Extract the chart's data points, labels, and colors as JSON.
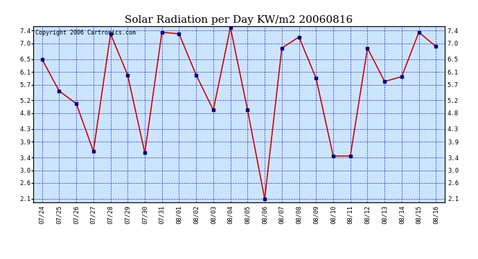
{
  "title": "Solar Radiation per Day KW/m2 20060816",
  "copyright_text": "Copyright 2006 Cartronics.com",
  "dates": [
    "07/24",
    "07/25",
    "07/26",
    "07/27",
    "07/28",
    "07/29",
    "07/30",
    "07/31",
    "08/01",
    "08/02",
    "08/03",
    "08/04",
    "08/05",
    "08/06",
    "08/07",
    "08/08",
    "08/09",
    "08/10",
    "08/11",
    "08/12",
    "08/13",
    "08/14",
    "08/15",
    "08/16"
  ],
  "values": [
    6.5,
    5.5,
    5.1,
    3.6,
    7.3,
    6.0,
    3.55,
    7.35,
    7.3,
    6.0,
    4.9,
    7.5,
    4.9,
    2.1,
    6.85,
    7.2,
    5.9,
    3.45,
    3.45,
    6.85,
    5.8,
    5.95,
    7.35,
    6.9
  ],
  "line_color": "#cc0000",
  "marker_color": "#000080",
  "bg_color": "#cce5ff",
  "grid_color": "#0000cc",
  "yticks": [
    2.1,
    2.6,
    3.0,
    3.4,
    3.9,
    4.3,
    4.8,
    5.2,
    5.7,
    6.1,
    6.5,
    7.0,
    7.4
  ],
  "ylim": [
    2.0,
    7.55
  ],
  "title_fontsize": 11,
  "copyright_fontsize": 6,
  "tick_fontsize": 6.5
}
